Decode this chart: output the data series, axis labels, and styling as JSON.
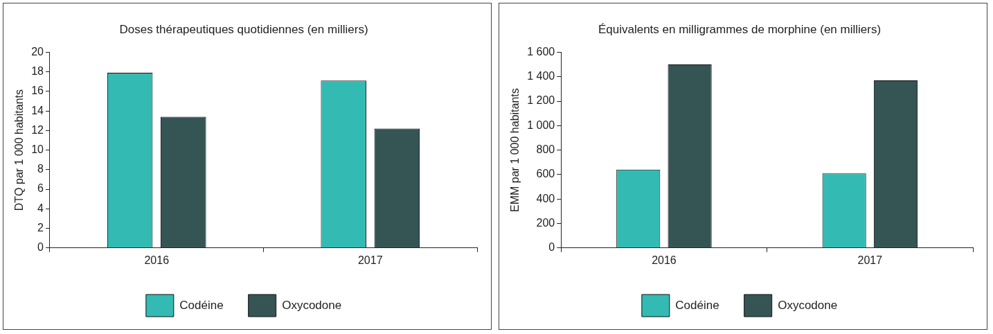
{
  "chart_data": [
    {
      "type": "bar",
      "title": "Doses thérapeutiques quotidiennes (en milliers)",
      "ylabel": "DTQ par 1 000 habitants",
      "categories": [
        "2016",
        "2017"
      ],
      "series": [
        {
          "name": "Codéine",
          "color": "#33bbb3",
          "values": [
            17.9,
            17.1
          ]
        },
        {
          "name": "Oxycodone",
          "color": "#355555",
          "values": [
            13.4,
            12.2
          ]
        }
      ],
      "ylim": [
        0,
        20
      ],
      "yticks": [
        0,
        2,
        4,
        6,
        8,
        10,
        12,
        14,
        16,
        18,
        20
      ],
      "grid": false,
      "legend": "bottom"
    },
    {
      "type": "bar",
      "title": "Équivalents en milligrammes de morphine (en milliers)",
      "ylabel": "EMM par 1 000 habitants",
      "categories": [
        "2016",
        "2017"
      ],
      "series": [
        {
          "name": "Codéine",
          "color": "#33bbb3",
          "values": [
            640,
            610
          ]
        },
        {
          "name": "Oxycodone",
          "color": "#355555",
          "values": [
            1500,
            1370
          ]
        }
      ],
      "ylim": [
        0,
        1600
      ],
      "yticks": [
        0,
        {
          "value": 200,
          "label": "200"
        },
        {
          "value": 400,
          "label": "400"
        },
        {
          "value": 600,
          "label": "600"
        },
        {
          "value": 800,
          "label": "800"
        },
        {
          "value": 1000,
          "label": "1 000"
        },
        {
          "value": 1200,
          "label": "1 200"
        },
        {
          "value": 1400,
          "label": "1 400"
        },
        {
          "value": 1600,
          "label": "1 600"
        }
      ],
      "grid": false,
      "legend": "bottom"
    }
  ]
}
